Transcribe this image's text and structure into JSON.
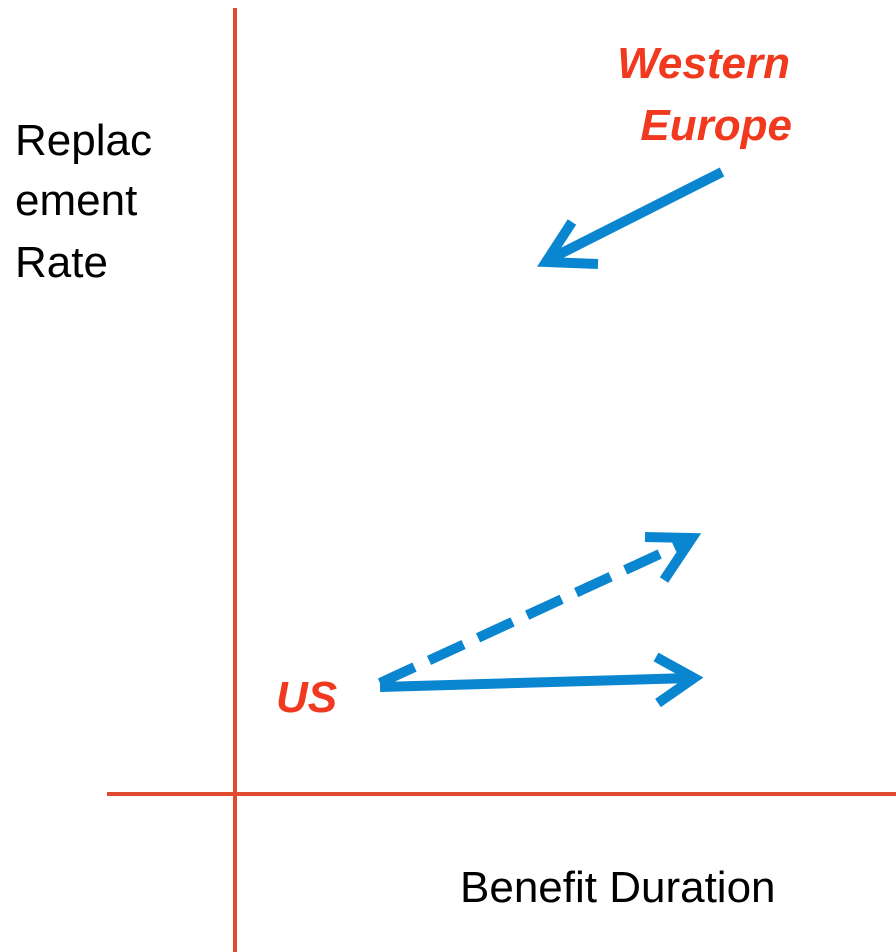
{
  "y_axis_label": [
    "Replac",
    "ement",
    "Rate"
  ],
  "x_axis_label": "Benefit Duration",
  "labels": {
    "western_europe": [
      "Western",
      "Europe"
    ],
    "us": "US"
  }
}
